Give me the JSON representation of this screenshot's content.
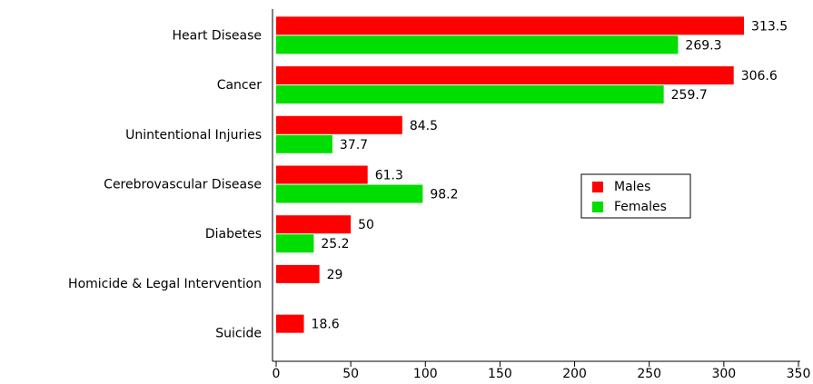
{
  "chart_data": {
    "type": "bar",
    "orientation": "horizontal",
    "categories": [
      "Heart Disease",
      "Cancer",
      "Unintentional Injuries",
      "Cerebrovascular Disease",
      "Diabetes",
      "Homicide & Legal Intervention",
      "Suicide"
    ],
    "series": [
      {
        "name": "Males",
        "color": "#ff0000",
        "values": [
          313.5,
          306.6,
          84.5,
          61.3,
          50,
          29,
          18.6
        ]
      },
      {
        "name": "Females",
        "color": "#00dd00",
        "values": [
          269.3,
          259.7,
          37.7,
          98.2,
          25.2,
          null,
          null
        ]
      }
    ],
    "xlim": [
      0,
      350
    ],
    "xticks": [
      0,
      50,
      100,
      150,
      200,
      250,
      300,
      350
    ],
    "grid": false,
    "data_labels": true
  }
}
